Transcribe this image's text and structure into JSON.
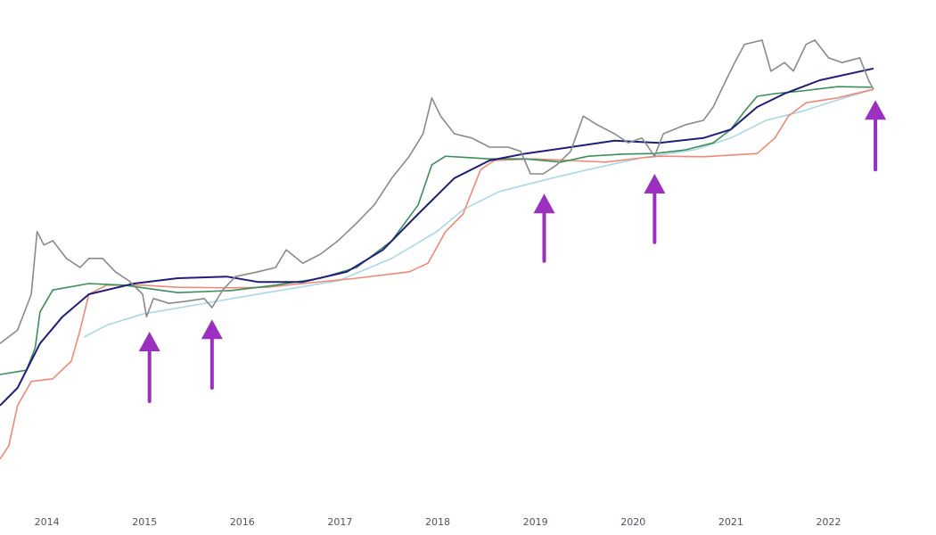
{
  "chart_data": {
    "type": "line",
    "title": "",
    "xlabel": "",
    "ylabel": "",
    "xlim": [
      2013.52,
      2023.1
    ],
    "ylim": [
      0,
      100
    ],
    "grid": false,
    "x_ticks": [
      "2014",
      "2015",
      "2016",
      "2017",
      "2018",
      "2019",
      "2020",
      "2021",
      "2022"
    ],
    "series": [
      {
        "color": "#8a8a8a",
        "points": [
          [
            2013.52,
            35.8
          ],
          [
            2013.7,
            38.3
          ],
          [
            2013.84,
            45
          ],
          [
            2013.9,
            56.7
          ],
          [
            2013.97,
            54.2
          ],
          [
            2014.06,
            55
          ],
          [
            2014.2,
            51.7
          ],
          [
            2014.34,
            50
          ],
          [
            2014.43,
            51.7
          ],
          [
            2014.57,
            51.7
          ],
          [
            2014.7,
            49.2
          ],
          [
            2014.84,
            47.5
          ],
          [
            2014.98,
            45
          ],
          [
            2015.02,
            40.8
          ],
          [
            2015.09,
            44.2
          ],
          [
            2015.25,
            43.3
          ],
          [
            2015.43,
            43.7
          ],
          [
            2015.61,
            44.2
          ],
          [
            2015.69,
            42.5
          ],
          [
            2015.8,
            45.8
          ],
          [
            2015.93,
            48.3
          ],
          [
            2016.16,
            49.2
          ],
          [
            2016.34,
            50
          ],
          [
            2016.45,
            53.3
          ],
          [
            2016.62,
            50.8
          ],
          [
            2016.8,
            52.5
          ],
          [
            2016.98,
            55
          ],
          [
            2017.17,
            58.3
          ],
          [
            2017.35,
            61.7
          ],
          [
            2017.53,
            66.7
          ],
          [
            2017.71,
            70.8
          ],
          [
            2017.85,
            75
          ],
          [
            2017.94,
            81.7
          ],
          [
            2018.03,
            78.3
          ],
          [
            2018.17,
            75
          ],
          [
            2018.35,
            74.2
          ],
          [
            2018.53,
            72.5
          ],
          [
            2018.72,
            72.5
          ],
          [
            2018.85,
            71.7
          ],
          [
            2018.95,
            67.5
          ],
          [
            2019.08,
            67.5
          ],
          [
            2019.22,
            69.2
          ],
          [
            2019.36,
            71.7
          ],
          [
            2019.49,
            78.3
          ],
          [
            2019.63,
            76.7
          ],
          [
            2019.81,
            75
          ],
          [
            2019.95,
            73.3
          ],
          [
            2020.09,
            74.2
          ],
          [
            2020.22,
            70.8
          ],
          [
            2020.31,
            75
          ],
          [
            2020.54,
            76.7
          ],
          [
            2020.72,
            77.5
          ],
          [
            2020.82,
            80
          ],
          [
            2020.95,
            85
          ],
          [
            2021.04,
            88.3
          ],
          [
            2021.14,
            91.7
          ],
          [
            2021.32,
            92.5
          ],
          [
            2021.41,
            86.7
          ],
          [
            2021.55,
            88.3
          ],
          [
            2021.64,
            86.7
          ],
          [
            2021.77,
            91.7
          ],
          [
            2021.86,
            92.5
          ],
          [
            2022.0,
            89.2
          ],
          [
            2022.14,
            88.3
          ],
          [
            2022.32,
            89.2
          ],
          [
            2022.41,
            85
          ],
          [
            2022.46,
            83.3
          ]
        ]
      },
      {
        "color": "#1f1f7a",
        "points": [
          [
            2013.52,
            24.2
          ],
          [
            2013.7,
            27.5
          ],
          [
            2013.93,
            35.8
          ],
          [
            2014.16,
            40.8
          ],
          [
            2014.43,
            45
          ],
          [
            2014.89,
            47
          ],
          [
            2015.34,
            48
          ],
          [
            2015.84,
            48.3
          ],
          [
            2016.16,
            47.3
          ],
          [
            2016.62,
            47.3
          ],
          [
            2017.07,
            49.2
          ],
          [
            2017.44,
            53.3
          ],
          [
            2017.8,
            60
          ],
          [
            2018.17,
            66.7
          ],
          [
            2018.53,
            70
          ],
          [
            2018.9,
            71.3
          ],
          [
            2019.36,
            72.5
          ],
          [
            2019.81,
            73.7
          ],
          [
            2020.27,
            73.3
          ],
          [
            2020.72,
            74.2
          ],
          [
            2021.0,
            75.8
          ],
          [
            2021.27,
            80
          ],
          [
            2021.55,
            82.5
          ],
          [
            2021.91,
            85
          ],
          [
            2022.46,
            87.2
          ]
        ]
      },
      {
        "color": "#3a8f5a",
        "points": [
          [
            2013.52,
            30
          ],
          [
            2013.79,
            30.8
          ],
          [
            2013.88,
            35
          ],
          [
            2013.93,
            41.7
          ],
          [
            2014.06,
            45.8
          ],
          [
            2014.43,
            47
          ],
          [
            2014.79,
            46.7
          ],
          [
            2015.34,
            45.3
          ],
          [
            2015.89,
            45.7
          ],
          [
            2016.34,
            46.7
          ],
          [
            2016.8,
            48
          ],
          [
            2017.17,
            50
          ],
          [
            2017.53,
            55
          ],
          [
            2017.8,
            61.7
          ],
          [
            2017.94,
            69.2
          ],
          [
            2018.08,
            70.8
          ],
          [
            2018.53,
            70.3
          ],
          [
            2018.9,
            70.3
          ],
          [
            2019.26,
            69.7
          ],
          [
            2019.54,
            70.8
          ],
          [
            2019.9,
            71.2
          ],
          [
            2020.22,
            71.3
          ],
          [
            2020.54,
            72
          ],
          [
            2020.82,
            73.3
          ],
          [
            2021.0,
            75.8
          ],
          [
            2021.14,
            79.2
          ],
          [
            2021.27,
            82
          ],
          [
            2021.45,
            82.5
          ],
          [
            2021.73,
            83
          ],
          [
            2022.09,
            83.8
          ],
          [
            2022.44,
            83.7
          ]
        ]
      },
      {
        "color": "#ee8a78",
        "points": [
          [
            2013.52,
            14.2
          ],
          [
            2013.61,
            16.7
          ],
          [
            2013.7,
            24.2
          ],
          [
            2013.84,
            28.7
          ],
          [
            2014.06,
            29.2
          ],
          [
            2014.25,
            32.5
          ],
          [
            2014.34,
            38.3
          ],
          [
            2014.43,
            45
          ],
          [
            2014.61,
            46.7
          ],
          [
            2014.98,
            46.7
          ],
          [
            2015.34,
            46.3
          ],
          [
            2015.89,
            46.2
          ],
          [
            2016.25,
            46.3
          ],
          [
            2016.62,
            47
          ],
          [
            2017.17,
            48
          ],
          [
            2017.71,
            49.2
          ],
          [
            2017.9,
            50.8
          ],
          [
            2018.08,
            56.7
          ],
          [
            2018.26,
            60
          ],
          [
            2018.44,
            68.3
          ],
          [
            2018.58,
            70
          ],
          [
            2018.99,
            70.3
          ],
          [
            2019.36,
            70
          ],
          [
            2019.72,
            69.7
          ],
          [
            2020.09,
            70.5
          ],
          [
            2020.27,
            70.8
          ],
          [
            2020.72,
            70.7
          ],
          [
            2021.27,
            71.3
          ],
          [
            2021.45,
            74.2
          ],
          [
            2021.59,
            78.3
          ],
          [
            2021.77,
            80.8
          ],
          [
            2022.09,
            81.7
          ],
          [
            2022.46,
            83.3
          ]
        ]
      },
      {
        "color": "#a9d8e6",
        "points": [
          [
            2014.38,
            37
          ],
          [
            2014.61,
            39.2
          ],
          [
            2014.98,
            41.3
          ],
          [
            2015.52,
            43
          ],
          [
            2016.25,
            45.3
          ],
          [
            2016.98,
            47.5
          ],
          [
            2017.53,
            51.7
          ],
          [
            2017.99,
            56.7
          ],
          [
            2018.26,
            60.8
          ],
          [
            2018.63,
            64.2
          ],
          [
            2019.17,
            66.7
          ],
          [
            2019.54,
            68.3
          ],
          [
            2020.09,
            70.5
          ],
          [
            2020.63,
            72
          ],
          [
            2021.0,
            74.2
          ],
          [
            2021.36,
            77.5
          ],
          [
            2021.73,
            79.2
          ],
          [
            2022.09,
            81.3
          ],
          [
            2022.46,
            83.3
          ]
        ]
      }
    ],
    "annotations": {
      "color": "#9b30c0",
      "arrows": [
        {
          "x": 2015.05,
          "tip": 38,
          "tail": 25
        },
        {
          "x": 2015.69,
          "tip": 40.3,
          "tail": 27.5
        },
        {
          "x": 2019.09,
          "tip": 63.8,
          "tail": 51.2
        },
        {
          "x": 2020.22,
          "tip": 67.5,
          "tail": 54.7
        },
        {
          "x": 2022.48,
          "tip": 81.3,
          "tail": 68.3
        }
      ]
    }
  }
}
